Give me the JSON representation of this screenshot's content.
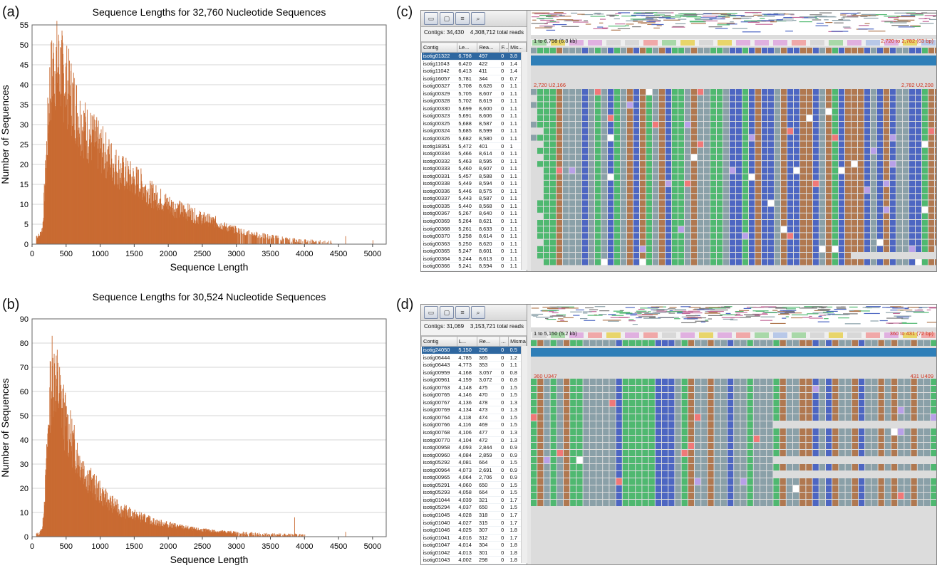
{
  "panels": {
    "a": {
      "letter": "(a)"
    },
    "b": {
      "letter": "(b)"
    },
    "c": {
      "letter": "(c)"
    },
    "d": {
      "letter": "(d)"
    }
  },
  "chart_data": [
    {
      "panel": "a",
      "type": "bar",
      "title": "Sequence Lengths for 32,760 Nucleotide Sequences",
      "xlabel": "Sequence Length",
      "ylabel": "Number of Sequences",
      "xlim": [
        0,
        5200
      ],
      "ylim": [
        0,
        55
      ],
      "xticks": [
        0,
        500,
        1000,
        1500,
        2000,
        2500,
        3000,
        3500,
        4000,
        4500,
        5000
      ],
      "yticks": [
        0,
        5,
        10,
        15,
        20,
        25,
        30,
        35,
        40,
        45,
        50,
        55
      ],
      "grid": "horizontal",
      "bar_color": "#c96b32",
      "envelope": {
        "x": [
          100,
          150,
          200,
          250,
          300,
          350,
          400,
          450,
          500,
          600,
          700,
          800,
          900,
          1000,
          1100,
          1200,
          1300,
          1400,
          1500,
          1600,
          1700,
          1800,
          1900,
          2000,
          2100,
          2200,
          2300,
          2400,
          2500,
          2600,
          2700,
          2800,
          2900,
          3000,
          3100,
          3200,
          3300,
          3400,
          3500,
          3600,
          3700,
          3800,
          3900,
          4000,
          4100,
          4200,
          4300,
          4400
        ],
        "y": [
          2,
          4,
          20,
          38,
          44,
          45,
          44,
          42,
          40,
          36,
          31,
          28,
          26,
          24,
          22,
          20,
          18,
          17,
          16,
          15,
          13,
          12,
          11,
          10,
          9,
          8.5,
          8,
          7,
          6.5,
          6,
          5.5,
          4.5,
          4,
          3.5,
          3,
          2.7,
          2.4,
          2,
          1.8,
          1.5,
          1.2,
          1,
          0.8,
          0.6,
          0.5,
          0.4,
          0.3,
          0.2
        ]
      },
      "notable_bars": [
        {
          "x": 390,
          "y": 51
        },
        {
          "x": 4600,
          "y": 2
        },
        {
          "x": 5000,
          "y": 1
        }
      ]
    },
    {
      "panel": "b",
      "type": "bar",
      "title": "Sequence Lengths for 30,524 Nucleotide Sequences",
      "xlabel": "Sequence Length",
      "ylabel": "Number of Sequences",
      "xlim": [
        0,
        5200
      ],
      "ylim": [
        0,
        90
      ],
      "xticks": [
        0,
        500,
        1000,
        1500,
        2000,
        2500,
        3000,
        3500,
        4000,
        4500,
        5000
      ],
      "yticks": [
        0,
        10,
        20,
        30,
        40,
        50,
        60,
        70,
        80,
        90
      ],
      "grid": "horizontal",
      "bar_color": "#c96b32",
      "envelope": {
        "x": [
          100,
          150,
          200,
          250,
          300,
          350,
          400,
          450,
          500,
          600,
          700,
          800,
          900,
          1000,
          1100,
          1200,
          1300,
          1400,
          1500,
          1600,
          1700,
          1800,
          1900,
          2000,
          2100,
          2200,
          2300,
          2400,
          2500,
          2600,
          2700,
          2800,
          2900,
          3000,
          3200,
          3400,
          3600,
          3800,
          4000
        ],
        "y": [
          1,
          4,
          25,
          55,
          68,
          65,
          58,
          52,
          46,
          38,
          31,
          25,
          21,
          18,
          15,
          13,
          11,
          10,
          9,
          8,
          7,
          6,
          5.5,
          5,
          4.5,
          4,
          3.5,
          3,
          2.8,
          2.5,
          2.2,
          2,
          1.8,
          1.5,
          1.2,
          1,
          0.8,
          0.6,
          0.4
        ]
      },
      "notable_bars": [
        {
          "x": 290,
          "y": 83
        },
        {
          "x": 3850,
          "y": 8
        },
        {
          "x": 4600,
          "y": 2
        }
      ]
    }
  ],
  "viewer_c": {
    "toolbar_icons": [
      "folder-icon",
      "window-icon",
      "list-icon",
      "search-icon"
    ],
    "summary_left": "Contigs: 34,430",
    "summary_right": "4,308,712 total reads",
    "columns": [
      "Contig",
      "Le...",
      "Rea...",
      "F...",
      "Mis..."
    ],
    "range_label": "1 to 6,798 (6.8 kb)",
    "range_right": "2,720 to 2,782 (63 bp)",
    "pos_left": "2,720 U2,166",
    "pos_right": "2,782 U2,208",
    "rows": [
      [
        "isotig01322",
        "6,798",
        "497",
        "0",
        "3.8"
      ],
      [
        "isotig11043",
        "6,420",
        "422",
        "0",
        "1.4"
      ],
      [
        "isotig11042",
        "6,413",
        "411",
        "0",
        "1.4"
      ],
      [
        "isotig16057",
        "5,781",
        "344",
        "0",
        "0.7"
      ],
      [
        "isotig00327",
        "5,708",
        "8,626",
        "0",
        "1.1"
      ],
      [
        "isotig00329",
        "5,705",
        "8,607",
        "0",
        "1.1"
      ],
      [
        "isotig00328",
        "5,702",
        "8,619",
        "0",
        "1.1"
      ],
      [
        "isotig00330",
        "5,699",
        "8,600",
        "0",
        "1.1"
      ],
      [
        "isotig00323",
        "5,691",
        "8,606",
        "0",
        "1.1"
      ],
      [
        "isotig00325",
        "5,688",
        "8,587",
        "0",
        "1.1"
      ],
      [
        "isotig00324",
        "5,685",
        "8,599",
        "0",
        "1.1"
      ],
      [
        "isotig00326",
        "5,682",
        "8,580",
        "0",
        "1.1"
      ],
      [
        "isotig18351",
        "5,472",
        "401",
        "0",
        "1"
      ],
      [
        "isotig00334",
        "5,466",
        "8,614",
        "0",
        "1.1"
      ],
      [
        "isotig00332",
        "5,463",
        "8,595",
        "0",
        "1.1"
      ],
      [
        "isotig00333",
        "5,460",
        "8,607",
        "0",
        "1.1"
      ],
      [
        "isotig00331",
        "5,457",
        "8,588",
        "0",
        "1.1"
      ],
      [
        "isotig00338",
        "5,449",
        "8,594",
        "0",
        "1.1"
      ],
      [
        "isotig00336",
        "5,446",
        "8,575",
        "0",
        "1.1"
      ],
      [
        "isotig00337",
        "5,443",
        "8,587",
        "0",
        "1.1"
      ],
      [
        "isotig00335",
        "5,440",
        "8,568",
        "0",
        "1.1"
      ],
      [
        "isotig00367",
        "5,267",
        "8,640",
        "0",
        "1.1"
      ],
      [
        "isotig00369",
        "5,264",
        "8,621",
        "0",
        "1.1"
      ],
      [
        "isotig00368",
        "5,261",
        "8,633",
        "0",
        "1.1"
      ],
      [
        "isotig00370",
        "5,258",
        "8,614",
        "0",
        "1.1"
      ],
      [
        "isotig00363",
        "5,250",
        "8,620",
        "0",
        "1.1"
      ],
      [
        "isotig00365",
        "5,247",
        "8,601",
        "0",
        "1.1"
      ],
      [
        "isotig00364",
        "5,244",
        "8,613",
        "0",
        "1.1"
      ],
      [
        "isotig00366",
        "5,241",
        "8,594",
        "0",
        "1.1"
      ]
    ]
  },
  "viewer_d": {
    "toolbar_icons": [
      "folder-icon",
      "window-icon",
      "list-icon",
      "search-icon"
    ],
    "summary_left": "Contigs: 31,069",
    "summary_right": "3,153,721 total reads",
    "columns": [
      "Contig",
      "L...",
      "Re...",
      "...",
      "Misma..."
    ],
    "range_label": "1 to 5,150 (5.2 kb)",
    "range_right": "360 to 431 (72 bp)",
    "pos_left": "360 U347",
    "pos_right": "431 U409",
    "rows": [
      [
        "isotig24050",
        "5,150",
        "296",
        "0",
        "0.5"
      ],
      [
        "isotig06444",
        "4,785",
        "365",
        "0",
        "1.2"
      ],
      [
        "isotig06443",
        "4,773",
        "353",
        "0",
        "1.1"
      ],
      [
        "isotig00959",
        "4,168",
        "3,057",
        "0",
        "0.8"
      ],
      [
        "isotig00961",
        "4,159",
        "3,072",
        "0",
        "0.8"
      ],
      [
        "isotig00763",
        "4,148",
        "475",
        "0",
        "1.5"
      ],
      [
        "isotig00765",
        "4,146",
        "470",
        "0",
        "1.5"
      ],
      [
        "isotig00767",
        "4,136",
        "478",
        "0",
        "1.3"
      ],
      [
        "isotig00769",
        "4,134",
        "473",
        "0",
        "1.3"
      ],
      [
        "isotig00764",
        "4,118",
        "474",
        "0",
        "1.5"
      ],
      [
        "isotig00766",
        "4,116",
        "469",
        "0",
        "1.5"
      ],
      [
        "isotig00768",
        "4,106",
        "477",
        "0",
        "1.3"
      ],
      [
        "isotig00770",
        "4,104",
        "472",
        "0",
        "1.3"
      ],
      [
        "isotig00958",
        "4,093",
        "2,844",
        "0",
        "0.9"
      ],
      [
        "isotig00960",
        "4,084",
        "2,859",
        "0",
        "0.9"
      ],
      [
        "isotig05292",
        "4,081",
        "664",
        "0",
        "1.5"
      ],
      [
        "isotig00964",
        "4,073",
        "2,691",
        "0",
        "0.9"
      ],
      [
        "isotig00965",
        "4,064",
        "2,706",
        "0",
        "0.9"
      ],
      [
        "isotig05291",
        "4,060",
        "650",
        "0",
        "1.5"
      ],
      [
        "isotig05293",
        "4,058",
        "664",
        "0",
        "1.5"
      ],
      [
        "isotig01044",
        "4,039",
        "321",
        "0",
        "1.7"
      ],
      [
        "isotig05294",
        "4,037",
        "650",
        "0",
        "1.5"
      ],
      [
        "isotig01045",
        "4,028",
        "318",
        "0",
        "1.7"
      ],
      [
        "isotig01040",
        "4,027",
        "315",
        "0",
        "1.7"
      ],
      [
        "isotig01046",
        "4,025",
        "307",
        "0",
        "1.8"
      ],
      [
        "isotig01041",
        "4,016",
        "312",
        "0",
        "1.7"
      ],
      [
        "isotig01047",
        "4,014",
        "304",
        "0",
        "1.8"
      ],
      [
        "isotig01042",
        "4,013",
        "301",
        "0",
        "1.8"
      ],
      [
        "isotig01043",
        "4,002",
        "298",
        "0",
        "1.8"
      ]
    ]
  },
  "nucleotide_colors": {
    "A": "#4fb870",
    "C": "#4d66c2",
    "G": "#b07850",
    "T": "#8aa0a8"
  }
}
